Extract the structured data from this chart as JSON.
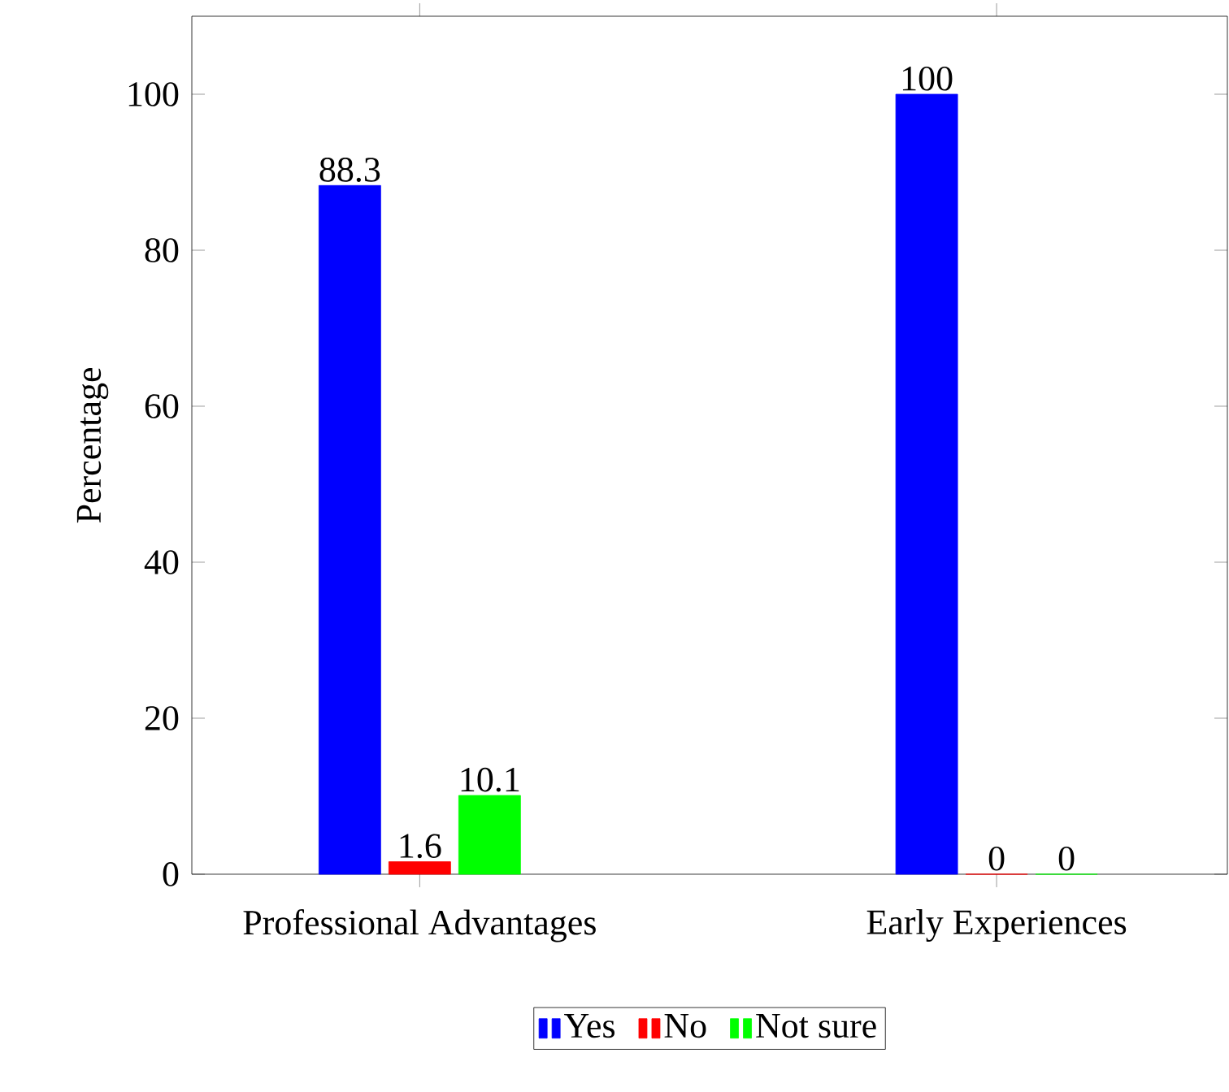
{
  "chart_data": {
    "type": "bar",
    "ylabel": "Percentage",
    "categories": [
      "Professional Advantages",
      "Early Experiences"
    ],
    "series": [
      {
        "name": "Yes",
        "color": "#0000ff",
        "values": [
          88.3,
          100
        ]
      },
      {
        "name": "No",
        "color": "#ff0000",
        "values": [
          1.6,
          0
        ]
      },
      {
        "name": "Not sure",
        "color": "#00ff00",
        "values": [
          10.1,
          0
        ]
      }
    ],
    "ylim": [
      0,
      110
    ],
    "yticks": [
      0,
      20,
      40,
      60,
      80,
      100
    ],
    "data_labels": true,
    "legend": "bottom"
  }
}
